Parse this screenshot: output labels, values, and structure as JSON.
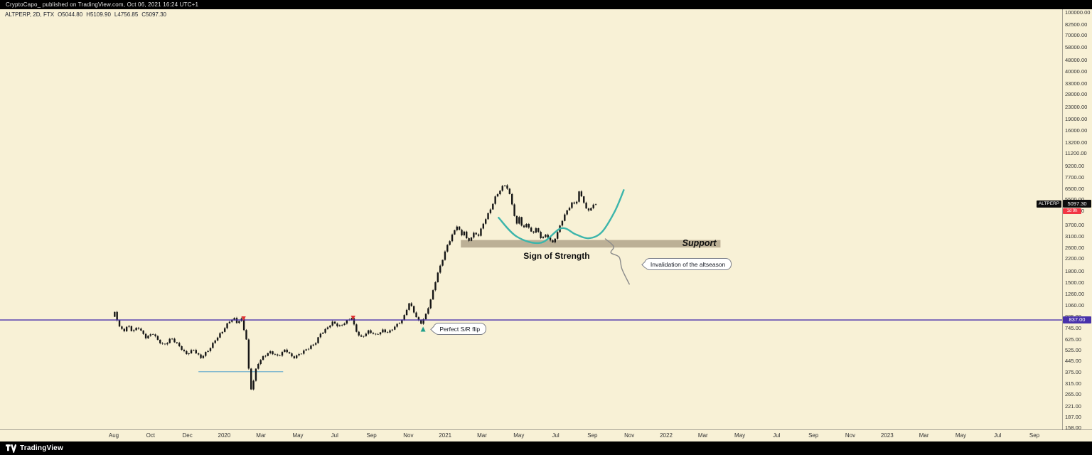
{
  "topbar": {
    "text": "CryptoCapo_ published on TradingView.com, Oct 06, 2021 16:24 UTC+1"
  },
  "bottombar": {
    "brand": "TradingView"
  },
  "legend": {
    "symbol_line": "ALTPERP, 2D, FTX",
    "open": "O5044.80",
    "high": "H5109.90",
    "low": "L4756.85",
    "close": "C5097.30"
  },
  "price_axis": {
    "symbol_tag": "ALTPERP",
    "current_price": "5097.30",
    "countdown": "1d 9h",
    "hline_label": "837.00"
  },
  "annotations": {
    "support_label": "Support",
    "sos_label": "Sign of Strength",
    "callout_invalidation": "Invalidation of the altseason",
    "callout_flip": "Perfect S/R flip"
  },
  "colors": {
    "background": "#f8f1d6",
    "candle": "#161616",
    "hline": "#4731ab",
    "support_band": "#b5a88f",
    "teal_curve": "#3cb5ab",
    "gray_curve": "#8a8a8a",
    "blue_segment": "#5da7cd",
    "marker_red": "#e03131",
    "marker_teal": "#1e9e8a",
    "countdown_bg": "#f23645",
    "badge_bg": "#0c0c0c"
  },
  "chart_data": {
    "type": "candlestick",
    "symbol": "ALTPERP",
    "timeframe": "2D",
    "exchange": "FTX",
    "y_scale": "log",
    "x_unit": "months_since_2019_08",
    "m_last": 26.2,
    "ohlc_last": {
      "open": 5044.8,
      "high": 5109.9,
      "low": 4756.85,
      "close": 5097.3
    },
    "price_path": [
      [
        0,
        880
      ],
      [
        0.15,
        940
      ],
      [
        0.35,
        760
      ],
      [
        0.6,
        700
      ],
      [
        0.85,
        780
      ],
      [
        1.1,
        700
      ],
      [
        1.4,
        745
      ],
      [
        1.8,
        640
      ],
      [
        2.2,
        685
      ],
      [
        2.5,
        600
      ],
      [
        2.8,
        560
      ],
      [
        3.2,
        640
      ],
      [
        3.6,
        560
      ],
      [
        4.0,
        490
      ],
      [
        4.4,
        535
      ],
      [
        4.8,
        460
      ],
      [
        5.2,
        520
      ],
      [
        5.6,
        620
      ],
      [
        6.0,
        700
      ],
      [
        6.35,
        820
      ],
      [
        6.6,
        870
      ],
      [
        6.8,
        800
      ],
      [
        7.0,
        860
      ],
      [
        7.3,
        600
      ],
      [
        7.45,
        330
      ],
      [
        7.55,
        285
      ],
      [
        7.7,
        340
      ],
      [
        7.85,
        420
      ],
      [
        8.2,
        470
      ],
      [
        8.6,
        510
      ],
      [
        9.0,
        480
      ],
      [
        9.4,
        525
      ],
      [
        9.8,
        465
      ],
      [
        10.2,
        500
      ],
      [
        10.6,
        530
      ],
      [
        11.0,
        580
      ],
      [
        11.3,
        680
      ],
      [
        11.6,
        720
      ],
      [
        12.0,
        810
      ],
      [
        12.3,
        760
      ],
      [
        12.6,
        800
      ],
      [
        13.0,
        860
      ],
      [
        13.2,
        720
      ],
      [
        13.5,
        640
      ],
      [
        13.9,
        700
      ],
      [
        14.3,
        660
      ],
      [
        14.7,
        720
      ],
      [
        15.0,
        685
      ],
      [
        15.4,
        760
      ],
      [
        15.8,
        860
      ],
      [
        16.1,
        1090
      ],
      [
        16.3,
        1000
      ],
      [
        16.55,
        840
      ],
      [
        16.8,
        800
      ],
      [
        17.0,
        900
      ],
      [
        17.3,
        1150
      ],
      [
        17.6,
        1600
      ],
      [
        17.9,
        2100
      ],
      [
        18.2,
        2700
      ],
      [
        18.75,
        3650
      ],
      [
        18.95,
        3050
      ],
      [
        19.1,
        3400
      ],
      [
        19.3,
        2800
      ],
      [
        19.6,
        3200
      ],
      [
        19.9,
        3100
      ],
      [
        20.2,
        3900
      ],
      [
        20.5,
        4600
      ],
      [
        20.8,
        5600
      ],
      [
        21.05,
        6200
      ],
      [
        21.3,
        6900
      ],
      [
        21.5,
        6400
      ],
      [
        21.7,
        5200
      ],
      [
        21.95,
        3600
      ],
      [
        22.1,
        4150
      ],
      [
        22.3,
        3350
      ],
      [
        22.5,
        3800
      ],
      [
        22.8,
        3200
      ],
      [
        23.0,
        3500
      ],
      [
        23.3,
        2950
      ],
      [
        23.6,
        3150
      ],
      [
        23.9,
        2760
      ],
      [
        24.2,
        3300
      ],
      [
        24.5,
        4100
      ],
      [
        24.8,
        4800
      ],
      [
        25.0,
        5300
      ],
      [
        25.15,
        5000
      ],
      [
        25.35,
        6100
      ],
      [
        25.6,
        5250
      ],
      [
        25.8,
        4420
      ],
      [
        26.0,
        4850
      ],
      [
        26.2,
        5097.3
      ]
    ],
    "hline_price": 837,
    "support_zone": {
      "price_top": 2900,
      "price_bottom": 2580,
      "m_start": 18.85,
      "m_end": 32.95
    },
    "blue_segment": {
      "price": 375,
      "m_start": 4.6,
      "m_end": 9.2
    },
    "teal_curve": [
      [
        20.9,
        4100
      ],
      [
        21.9,
        3050
      ],
      [
        23.2,
        2780
      ],
      [
        24.3,
        3480
      ],
      [
        25.1,
        3160
      ],
      [
        25.8,
        2980
      ],
      [
        26.5,
        3270
      ],
      [
        27.2,
        4500
      ],
      [
        27.7,
        6300
      ]
    ],
    "gray_curve": [
      [
        26.7,
        2950
      ],
      [
        27.15,
        2620
      ],
      [
        27.0,
        2380
      ],
      [
        27.45,
        2220
      ],
      [
        27.6,
        1850
      ],
      [
        28.0,
        1460
      ]
    ],
    "markers": {
      "red_down": [
        {
          "m": 7.05,
          "price": 905
        },
        {
          "m": 13.0,
          "price": 915
        }
      ],
      "teal_up": {
        "m": 16.8,
        "price": 755
      }
    },
    "anchors": {
      "support_text": {
        "m": 31.8,
        "price": 2760
      },
      "sos_text": {
        "m": 24.05,
        "price": 2260
      },
      "invalidation_callout": {
        "m": 28.8,
        "price": 1980
      },
      "flip_callout": {
        "m": 17.35,
        "price": 725
      }
    },
    "y_ticks": [
      100000,
      82500,
      70000,
      58000,
      48000,
      40000,
      33000,
      28000,
      23000,
      19000,
      16000,
      13200,
      11200,
      9200,
      7700,
      6500,
      5500,
      4600,
      3700,
      3100,
      2600,
      2200,
      1800,
      1500,
      1260,
      1060,
      885,
      745,
      625,
      525,
      445,
      375,
      315,
      265,
      221,
      187,
      158
    ],
    "x_labels": [
      "Aug",
      "Oct",
      "Dec",
      "2020",
      "Mar",
      "May",
      "Jul",
      "Sep",
      "Nov",
      "2021",
      "Mar",
      "May",
      "Jul",
      "Sep",
      "Nov",
      "2022",
      "Mar",
      "May",
      "Jul",
      "Sep",
      "Nov",
      "2023",
      "Mar",
      "May",
      "Jul",
      "Sep"
    ],
    "legend_hint": "none",
    "grid": "off"
  }
}
